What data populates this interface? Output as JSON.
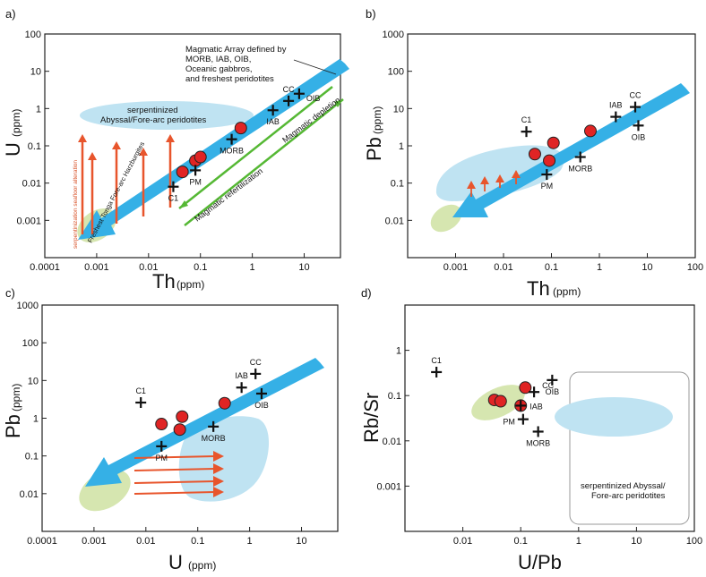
{
  "chart_data": [
    {
      "panel": "a)",
      "type": "scatter",
      "scale": "log-log",
      "x_axis": {
        "label": "Th",
        "unit": "(ppm)",
        "ticks": [
          "0.0001",
          "0.001",
          "0.01",
          "0.1",
          "1",
          "10"
        ],
        "range": [
          0.0001,
          50
        ]
      },
      "y_axis": {
        "label": "U",
        "unit": "(ppm)",
        "ticks": [
          "0.001",
          "0.01",
          "0.1",
          "1",
          "10",
          "100"
        ],
        "range": [
          0.0001,
          100
        ]
      },
      "reference_points": [
        {
          "label": "C1",
          "x": 0.03,
          "y": 0.008
        },
        {
          "label": "PM",
          "x": 0.08,
          "y": 0.022
        },
        {
          "label": "MORB",
          "x": 0.4,
          "y": 0.15
        },
        {
          "label": "IAB",
          "x": 2.5,
          "y": 0.9
        },
        {
          "label": "CC",
          "x": 5.0,
          "y": 1.6
        },
        {
          "label": "OIB",
          "x": 8.0,
          "y": 2.5
        }
      ],
      "samples": [
        {
          "x": 0.045,
          "y": 0.02
        },
        {
          "x": 0.08,
          "y": 0.04
        },
        {
          "x": 0.1,
          "y": 0.05
        },
        {
          "x": 0.6,
          "y": 0.3
        }
      ],
      "annotations": {
        "array_note": "Magmatic Array defined by MORB, IAB, OIB, Oceanic gabbros, and freshest peridotites",
        "ellipse_label": "serpentinized Abyssal/Fore-arc peridotites",
        "green_label": "Freshest Tonga Fore-arc Harzburgites",
        "red_label": "serpentinization seafloor alteration",
        "depletion": "Magmatic depletion",
        "refertilization": "Magmatic refertilization"
      }
    },
    {
      "panel": "b)",
      "type": "scatter",
      "scale": "log-log",
      "x_axis": {
        "label": "Th",
        "unit": "(ppm)",
        "ticks": [
          "0.001",
          "0.01",
          "0.1",
          "1",
          "10",
          "100"
        ],
        "range": [
          0.0001,
          100
        ]
      },
      "y_axis": {
        "label": "Pb",
        "unit": "(ppm)",
        "ticks": [
          "0.01",
          "0.1",
          "1",
          "10",
          "100",
          "1000"
        ],
        "range": [
          0.001,
          1000
        ]
      },
      "reference_points": [
        {
          "label": "C1",
          "x": 0.03,
          "y": 2.4
        },
        {
          "label": "PM",
          "x": 0.08,
          "y": 0.17
        },
        {
          "label": "MORB",
          "x": 0.4,
          "y": 0.5
        },
        {
          "label": "IAB",
          "x": 2.2,
          "y": 6.0
        },
        {
          "label": "CC",
          "x": 5.6,
          "y": 11
        },
        {
          "label": "OIB",
          "x": 6.5,
          "y": 3.5
        }
      ],
      "samples": [
        {
          "x": 0.045,
          "y": 0.6
        },
        {
          "x": 0.09,
          "y": 0.4
        },
        {
          "x": 0.11,
          "y": 1.2
        },
        {
          "x": 0.65,
          "y": 2.5
        }
      ]
    },
    {
      "panel": "c)",
      "type": "scatter",
      "scale": "log-log",
      "x_axis": {
        "label": "U",
        "unit": "(ppm)",
        "ticks": [
          "0.0001",
          "0.001",
          "0.01",
          "0.1",
          "1",
          "10"
        ],
        "range": [
          0.0001,
          50
        ]
      },
      "y_axis": {
        "label": "Pb",
        "unit": "(ppm)",
        "ticks": [
          "0.01",
          "0.1",
          "1",
          "10",
          "100",
          "1000"
        ],
        "range": [
          0.001,
          1000
        ]
      },
      "reference_points": [
        {
          "label": "C1",
          "x": 0.008,
          "y": 2.6
        },
        {
          "label": "PM",
          "x": 0.02,
          "y": 0.18
        },
        {
          "label": "MORB",
          "x": 0.2,
          "y": 0.6
        },
        {
          "label": "IAB",
          "x": 0.7,
          "y": 6.5
        },
        {
          "label": "CC",
          "x": 1.3,
          "y": 15
        },
        {
          "label": "OIB",
          "x": 1.7,
          "y": 4.5
        }
      ],
      "samples": [
        {
          "x": 0.02,
          "y": 0.7
        },
        {
          "x": 0.045,
          "y": 0.5
        },
        {
          "x": 0.05,
          "y": 1.1
        },
        {
          "x": 0.33,
          "y": 2.5
        }
      ]
    },
    {
      "panel": "d)",
      "type": "scatter",
      "scale": "log-log",
      "x_axis": {
        "label": "U/Pb",
        "unit": "",
        "ticks": [
          "0.01",
          "0.1",
          "1",
          "10",
          "100"
        ],
        "range": [
          0.001,
          100
        ]
      },
      "y_axis": {
        "label": "Rb/Sr",
        "unit": "",
        "ticks": [
          "0.001",
          "0.01",
          "0.1",
          "1"
        ],
        "range": [
          0.0001,
          10
        ]
      },
      "reference_points": [
        {
          "label": "C1",
          "x": 0.0035,
          "y": 0.33
        },
        {
          "label": "PM",
          "x": 0.11,
          "y": 0.03
        },
        {
          "label": "MORB",
          "x": 0.2,
          "y": 0.016
        },
        {
          "label": "IAB",
          "x": 0.1,
          "y": 0.06
        },
        {
          "label": "CC",
          "x": 0.17,
          "y": 0.12
        },
        {
          "label": "OIB",
          "x": 0.35,
          "y": 0.22
        }
      ],
      "samples": [
        {
          "x": 0.035,
          "y": 0.08
        },
        {
          "x": 0.045,
          "y": 0.075
        },
        {
          "x": 0.1,
          "y": 0.06
        },
        {
          "x": 0.12,
          "y": 0.15
        }
      ],
      "annotations": {
        "box_label": "serpentinized Abyssal/ Fore-arc peridotites"
      }
    }
  ],
  "colors": {
    "arrow_blue": "#35b0e6",
    "field_blue": "#bfe3f2",
    "field_green": "#d6e6b0",
    "sample_red": "#e02424",
    "alteration_red": "#e8552c",
    "line_green": "#55b834",
    "frame": "#222222"
  }
}
